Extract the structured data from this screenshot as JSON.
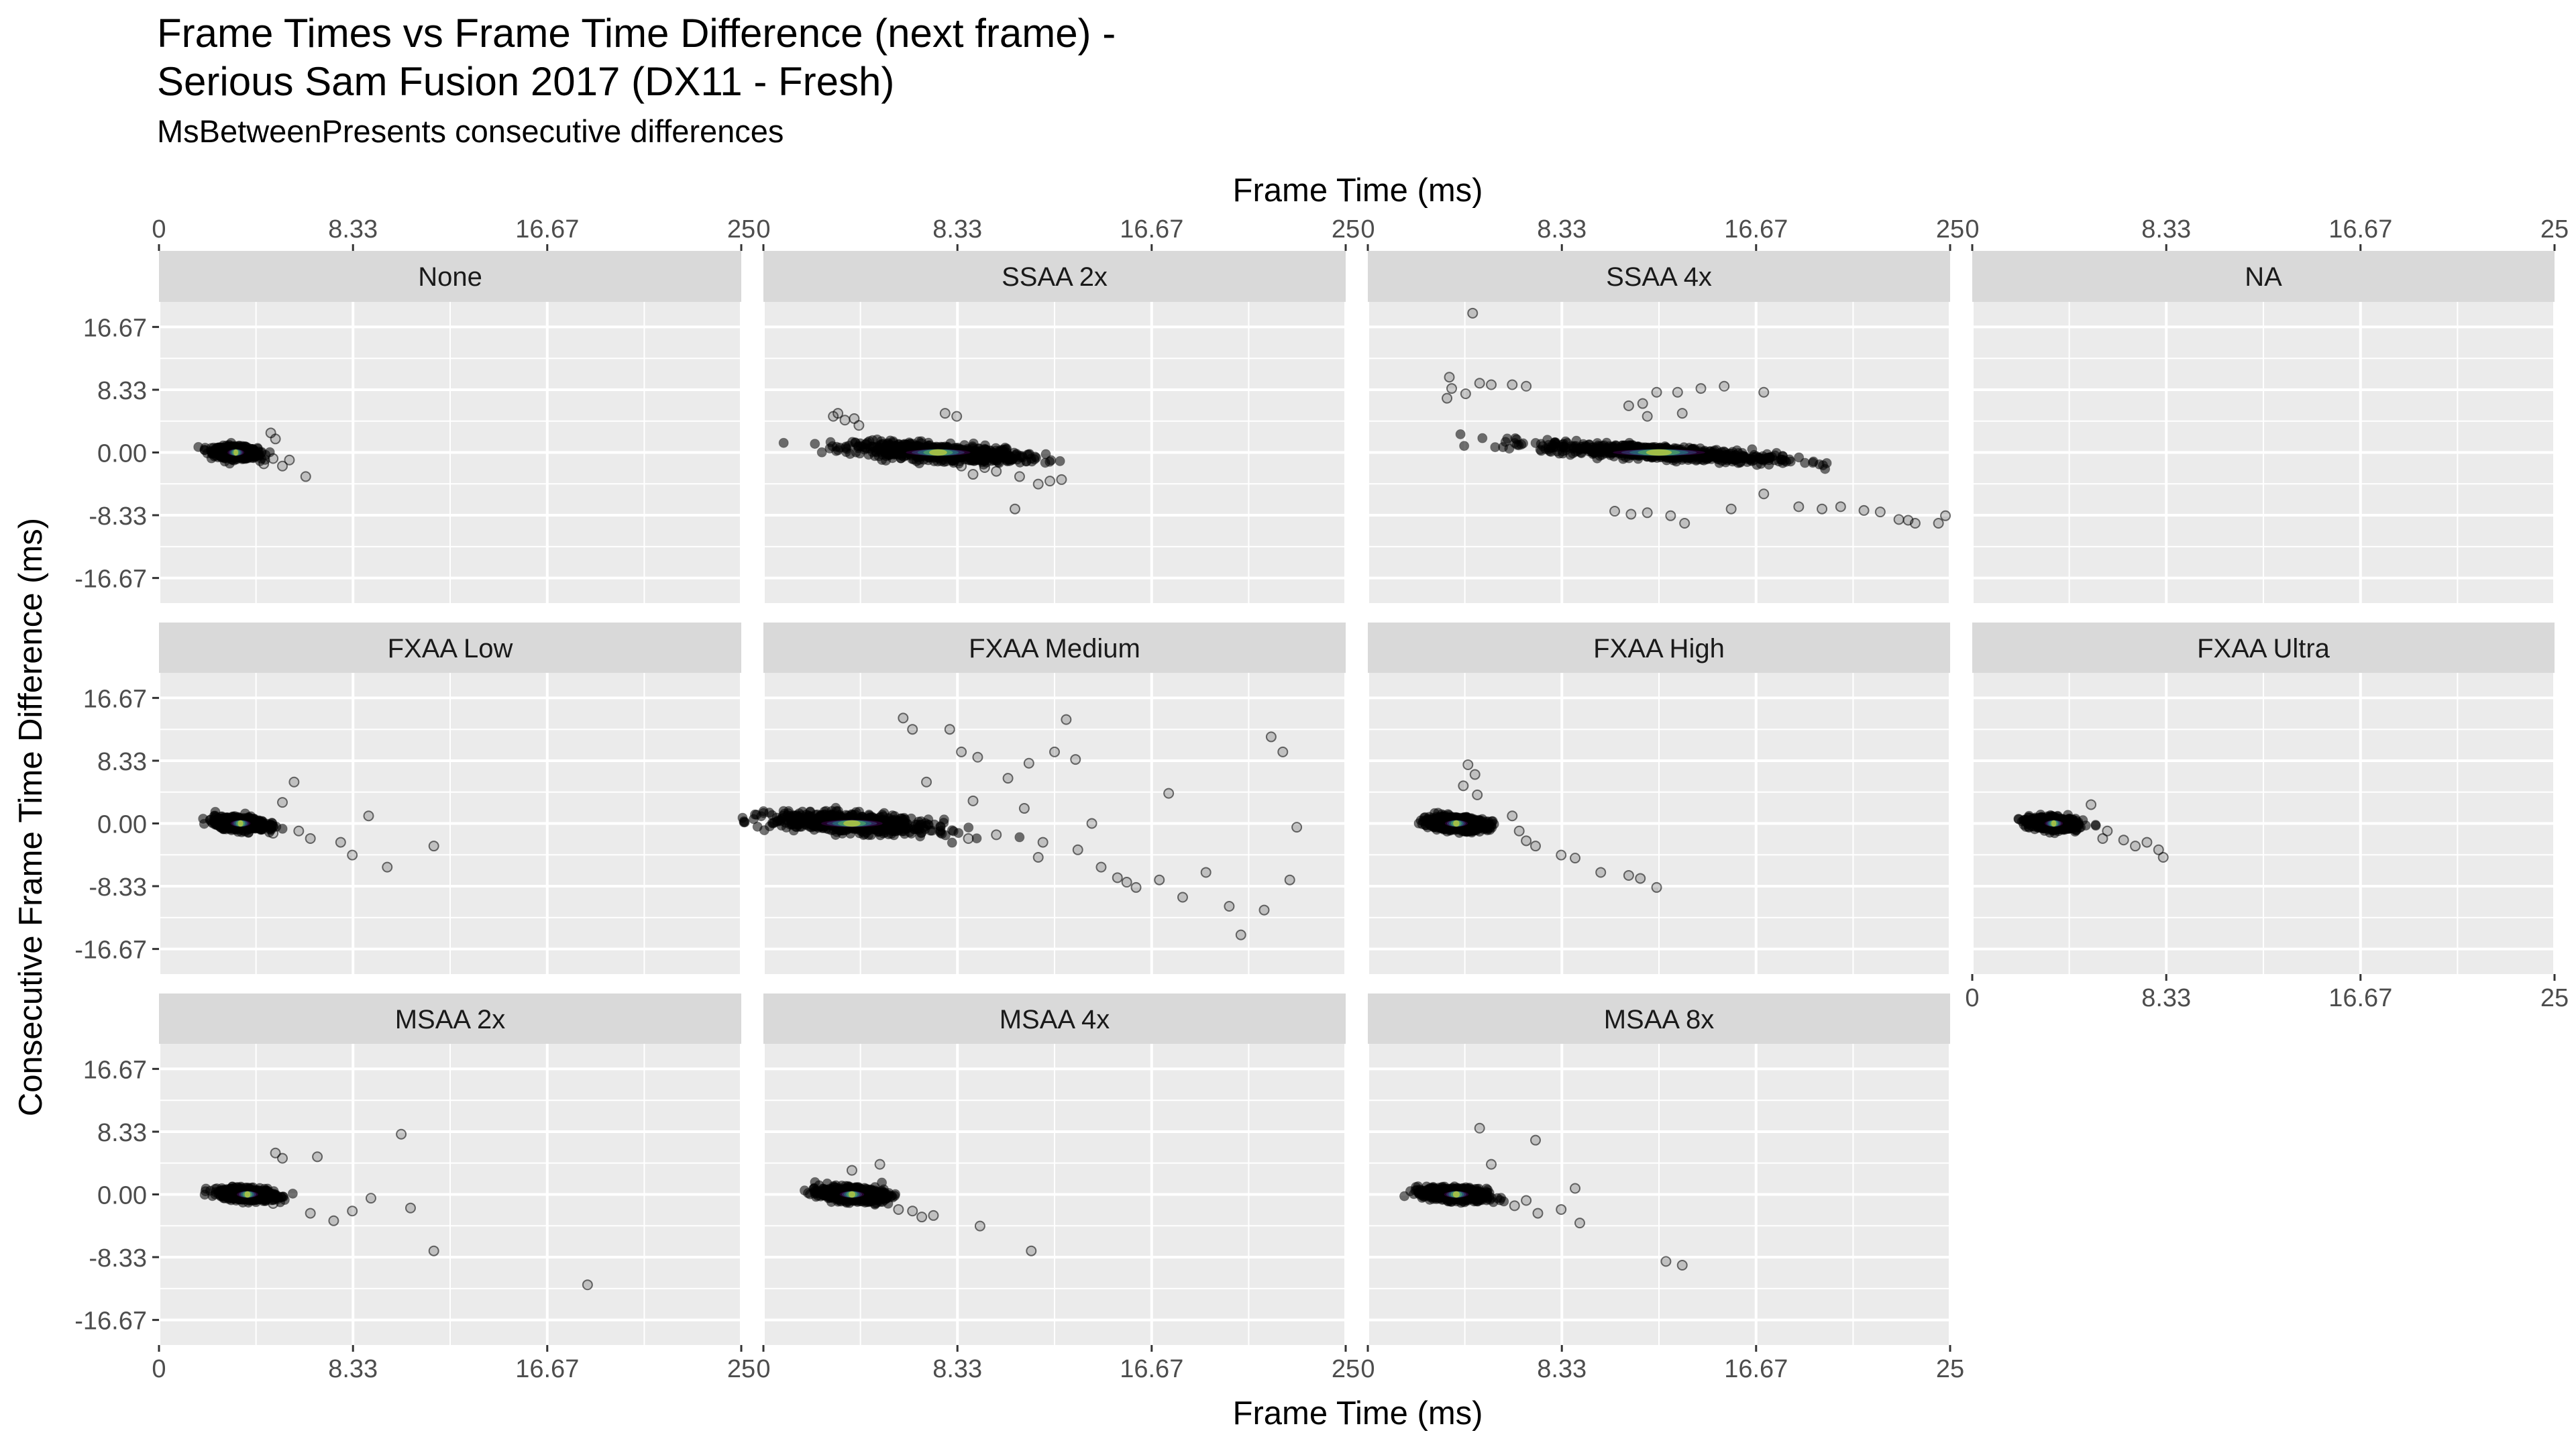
{
  "chart_data": {
    "type": "scatter",
    "title": "Frame Times vs Frame Time Difference (next frame) -\nSerious Sam Fusion 2017 (DX11 - Fresh)",
    "subtitle": "MsBetweenPresents consecutive differences",
    "xlabel": "Frame Time (ms)",
    "ylabel": "Consecutive Frame Time Difference (ms)",
    "xlim": [
      0,
      25
    ],
    "ylim": [
      -20,
      20
    ],
    "x_ticks": [
      "0",
      "8.33",
      "16.67",
      "25"
    ],
    "y_ticks": [
      "16.67",
      "8.33",
      "0.00",
      "-8.33",
      "-16.67"
    ],
    "x_tick_values": [
      0,
      8.33,
      16.67,
      25
    ],
    "y_tick_values": [
      16.67,
      8.33,
      0,
      -8.33,
      -16.67
    ],
    "grid": true,
    "colors": {
      "panel_background": "#ebebeb",
      "strip_background": "#d9d9d9",
      "grid": "#ffffff",
      "points": "#000000",
      "core_density": [
        "#440154",
        "#3b528b",
        "#21908c",
        "#5dc863",
        "#fde725"
      ]
    },
    "facets": [
      {
        "name": "None",
        "center": [
          3.3,
          0
        ],
        "spread": [
          1.1,
          0.9
        ],
        "outliers": [
          [
            4.8,
            2.6
          ],
          [
            5.0,
            1.8
          ],
          [
            4.5,
            -1.5
          ],
          [
            5.3,
            -1.8
          ],
          [
            6.3,
            -3.2
          ],
          [
            5.6,
            -1.0
          ],
          [
            4.9,
            -0.8
          ]
        ]
      },
      {
        "name": "SSAA 2x",
        "center": [
          7.5,
          0
        ],
        "spread": [
          4.2,
          1.2
        ],
        "outliers": [
          [
            3.2,
            5.2
          ],
          [
            3.5,
            4.3
          ],
          [
            4.1,
            3.6
          ],
          [
            3.0,
            4.8
          ],
          [
            3.9,
            4.5
          ],
          [
            7.8,
            5.2
          ],
          [
            8.3,
            4.8
          ],
          [
            9.5,
            -2.0
          ],
          [
            10.0,
            -2.5
          ],
          [
            11.0,
            -3.2
          ],
          [
            12.3,
            -3.8
          ],
          [
            12.8,
            -3.6
          ],
          [
            11.8,
            -4.2
          ],
          [
            10.8,
            -7.5
          ],
          [
            9.0,
            -2.9
          ],
          [
            8.5,
            -1.8
          ]
        ]
      },
      {
        "name": "SSAA 4x",
        "center": [
          12.5,
          0
        ],
        "spread": [
          6.0,
          1.0
        ],
        "outliers": [
          [
            4.5,
            18.5
          ],
          [
            3.5,
            10.0
          ],
          [
            3.6,
            8.5
          ],
          [
            4.2,
            7.8
          ],
          [
            4.8,
            9.2
          ],
          [
            5.3,
            9.0
          ],
          [
            6.2,
            9.0
          ],
          [
            6.8,
            8.8
          ],
          [
            3.4,
            7.2
          ],
          [
            11.2,
            6.2
          ],
          [
            11.8,
            6.5
          ],
          [
            12.4,
            8.0
          ],
          [
            13.3,
            8.0
          ],
          [
            14.3,
            8.5
          ],
          [
            15.3,
            8.8
          ],
          [
            17.0,
            8.0
          ],
          [
            12.0,
            4.8
          ],
          [
            13.5,
            5.2
          ],
          [
            10.6,
            -7.8
          ],
          [
            11.3,
            -8.2
          ],
          [
            12.0,
            -8.0
          ],
          [
            13.0,
            -8.4
          ],
          [
            13.6,
            -9.4
          ],
          [
            15.6,
            -7.5
          ],
          [
            17.0,
            -5.5
          ],
          [
            18.5,
            -7.2
          ],
          [
            19.5,
            -7.5
          ],
          [
            20.3,
            -7.2
          ],
          [
            21.3,
            -7.7
          ],
          [
            22.0,
            -7.9
          ],
          [
            22.8,
            -8.9
          ],
          [
            23.5,
            -9.4
          ],
          [
            24.5,
            -9.4
          ],
          [
            24.8,
            -8.4
          ],
          [
            23.2,
            -9.0
          ]
        ]
      },
      {
        "name": "NA",
        "center": null,
        "spread": null,
        "outliers": []
      },
      {
        "name": "FXAA Low",
        "center": [
          3.5,
          0
        ],
        "spread": [
          1.3,
          0.9
        ],
        "outliers": [
          [
            5.8,
            5.5
          ],
          [
            5.3,
            2.8
          ],
          [
            6.0,
            -1.0
          ],
          [
            6.5,
            -2.0
          ],
          [
            7.8,
            -2.5
          ],
          [
            8.3,
            -4.2
          ],
          [
            9.0,
            1.0
          ],
          [
            9.8,
            -5.8
          ],
          [
            11.8,
            -3.0
          ],
          [
            4.9,
            -1.3
          ]
        ]
      },
      {
        "name": "FXAA Medium",
        "center": [
          3.8,
          0
        ],
        "spread": [
          4.0,
          1.4
        ],
        "outliers": [
          [
            6.0,
            14.0
          ],
          [
            6.4,
            12.5
          ],
          [
            8.0,
            12.5
          ],
          [
            8.5,
            9.5
          ],
          [
            9.2,
            8.8
          ],
          [
            10.5,
            6.0
          ],
          [
            11.4,
            8.0
          ],
          [
            12.5,
            9.5
          ],
          [
            13.0,
            13.8
          ],
          [
            13.4,
            8.5
          ],
          [
            14.1,
            0.0
          ],
          [
            14.5,
            -5.8
          ],
          [
            15.2,
            -7.2
          ],
          [
            15.6,
            -7.8
          ],
          [
            16.0,
            -8.5
          ],
          [
            17.0,
            -7.5
          ],
          [
            18.0,
            -9.8
          ],
          [
            17.4,
            4.0
          ],
          [
            19.0,
            -6.5
          ],
          [
            20.0,
            -11.0
          ],
          [
            20.5,
            -14.8
          ],
          [
            21.8,
            11.5
          ],
          [
            21.5,
            -11.5
          ],
          [
            22.3,
            9.5
          ],
          [
            22.6,
            -7.5
          ],
          [
            22.9,
            -0.5
          ],
          [
            11.2,
            2.0
          ],
          [
            10.0,
            -1.5
          ],
          [
            9.0,
            3.0
          ],
          [
            12.0,
            -2.5
          ],
          [
            13.5,
            -3.5
          ],
          [
            7.0,
            5.5
          ],
          [
            8.8,
            -2.0
          ],
          [
            11.8,
            -4.5
          ]
        ]
      },
      {
        "name": "FXAA High",
        "center": [
          3.8,
          0
        ],
        "spread": [
          1.5,
          1.0
        ],
        "outliers": [
          [
            4.3,
            7.8
          ],
          [
            4.6,
            6.5
          ],
          [
            4.1,
            5.0
          ],
          [
            4.7,
            3.8
          ],
          [
            6.2,
            1.0
          ],
          [
            6.8,
            -2.3
          ],
          [
            7.2,
            -3.0
          ],
          [
            8.3,
            -4.2
          ],
          [
            8.9,
            -4.6
          ],
          [
            10.0,
            -6.5
          ],
          [
            11.2,
            -6.9
          ],
          [
            11.7,
            -7.3
          ],
          [
            12.4,
            -8.5
          ],
          [
            6.5,
            -1.0
          ]
        ]
      },
      {
        "name": "FXAA Ultra",
        "center": [
          3.5,
          0
        ],
        "spread": [
          1.2,
          0.9
        ],
        "outliers": [
          [
            5.1,
            2.5
          ],
          [
            5.6,
            -2.0
          ],
          [
            6.5,
            -2.2
          ],
          [
            7.0,
            -3.0
          ],
          [
            7.5,
            -2.5
          ],
          [
            8.0,
            -3.5
          ],
          [
            8.2,
            -4.5
          ],
          [
            5.8,
            -1.0
          ]
        ]
      },
      {
        "name": "MSAA 2x",
        "center": [
          3.8,
          0
        ],
        "spread": [
          1.4,
          0.9
        ],
        "outliers": [
          [
            5.0,
            5.5
          ],
          [
            5.3,
            4.8
          ],
          [
            6.8,
            5.0
          ],
          [
            6.5,
            -2.5
          ],
          [
            7.5,
            -3.5
          ],
          [
            8.3,
            -2.2
          ],
          [
            9.1,
            -0.5
          ],
          [
            10.4,
            8.0
          ],
          [
            10.8,
            -1.8
          ],
          [
            11.8,
            -7.5
          ],
          [
            18.4,
            -12.0
          ],
          [
            4.9,
            -1.2
          ]
        ]
      },
      {
        "name": "MSAA 4x",
        "center": [
          3.8,
          0
        ],
        "spread": [
          1.6,
          1.0
        ],
        "outliers": [
          [
            5.0,
            4.0
          ],
          [
            3.8,
            3.2
          ],
          [
            6.8,
            -3.0
          ],
          [
            7.3,
            -2.8
          ],
          [
            9.3,
            -4.2
          ],
          [
            11.5,
            -7.5
          ],
          [
            5.8,
            -2.0
          ],
          [
            6.4,
            -2.2
          ]
        ]
      },
      {
        "name": "MSAA 8x",
        "center": [
          3.8,
          0
        ],
        "spread": [
          1.6,
          1.0
        ],
        "outliers": [
          [
            4.8,
            8.8
          ],
          [
            7.2,
            7.2
          ],
          [
            5.3,
            4.0
          ],
          [
            6.3,
            -1.5
          ],
          [
            7.3,
            -2.5
          ],
          [
            8.3,
            -2.0
          ],
          [
            8.9,
            0.8
          ],
          [
            9.1,
            -3.8
          ],
          [
            12.8,
            -8.9
          ],
          [
            13.5,
            -9.4
          ],
          [
            6.8,
            -0.8
          ]
        ]
      }
    ]
  }
}
